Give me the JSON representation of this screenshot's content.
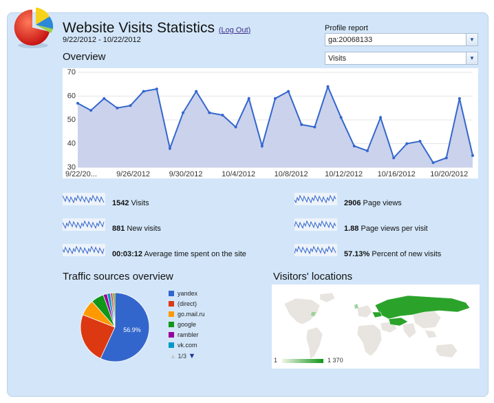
{
  "header": {
    "title": "Website Visits Statistics",
    "logout_label": "Log Out",
    "date_range": "9/22/2012 - 10/22/2012"
  },
  "profile": {
    "label": "Profile report",
    "selected": "ga:20068133",
    "metric_selected": "Visits"
  },
  "overview": {
    "title": "Overview"
  },
  "chart_data": {
    "type": "area",
    "title": "",
    "xlabel": "",
    "ylabel": "",
    "ylim": [
      30,
      70
    ],
    "yticks": [
      30,
      40,
      50,
      60,
      70
    ],
    "grid": true,
    "x_tick_labels": [
      "9/22/20...",
      "9/26/2012",
      "9/30/2012",
      "10/4/2012",
      "10/8/2012",
      "10/12/2012",
      "10/16/2012",
      "10/20/2012"
    ],
    "x": [
      "9/22/2012",
      "9/23/2012",
      "9/24/2012",
      "9/25/2012",
      "9/26/2012",
      "9/27/2012",
      "9/28/2012",
      "9/29/2012",
      "9/30/2012",
      "10/1/2012",
      "10/2/2012",
      "10/3/2012",
      "10/4/2012",
      "10/5/2012",
      "10/6/2012",
      "10/7/2012",
      "10/8/2012",
      "10/9/2012",
      "10/10/2012",
      "10/11/2012",
      "10/12/2012",
      "10/13/2012",
      "10/14/2012",
      "10/15/2012",
      "10/16/2012",
      "10/17/2012",
      "10/18/2012",
      "10/19/2012",
      "10/20/2012",
      "10/21/2012",
      "10/22/2012"
    ],
    "series": [
      {
        "values": [
          57,
          54,
          59,
          55,
          56,
          62,
          63,
          38,
          53,
          62,
          53,
          52,
          47,
          59,
          39,
          59,
          62,
          48,
          47,
          64,
          51,
          39,
          37,
          51,
          34,
          40,
          41,
          32,
          34,
          59,
          35
        ]
      }
    ],
    "colors": {
      "line": "#3366cc",
      "fill": "#c5cdea"
    }
  },
  "stats": [
    {
      "value": "1542",
      "label": "Visits"
    },
    {
      "value": "881",
      "label": "New visits"
    },
    {
      "value": "00:03:12",
      "label": "Average time spent on the site"
    },
    {
      "value": "2906",
      "label": "Page views"
    },
    {
      "value": "1.88",
      "label": "Page views per visit"
    },
    {
      "value": "57.13%",
      "label": "Percent of new visits"
    }
  ],
  "traffic": {
    "title": "Traffic sources overview",
    "slice_label": "56.9%",
    "legend": [
      {
        "name": "yandex",
        "color": "#3366cc"
      },
      {
        "name": "(direct)",
        "color": "#dc3912"
      },
      {
        "name": "go.mail.ru",
        "color": "#ff9900"
      },
      {
        "name": "google",
        "color": "#109618"
      },
      {
        "name": "rambler",
        "color": "#990099"
      },
      {
        "name": "vk.com",
        "color": "#0099c6"
      }
    ],
    "pager": "1/3"
  },
  "locations": {
    "title": "Visitors' locations",
    "scale_min": "1",
    "scale_max": "1 370"
  }
}
